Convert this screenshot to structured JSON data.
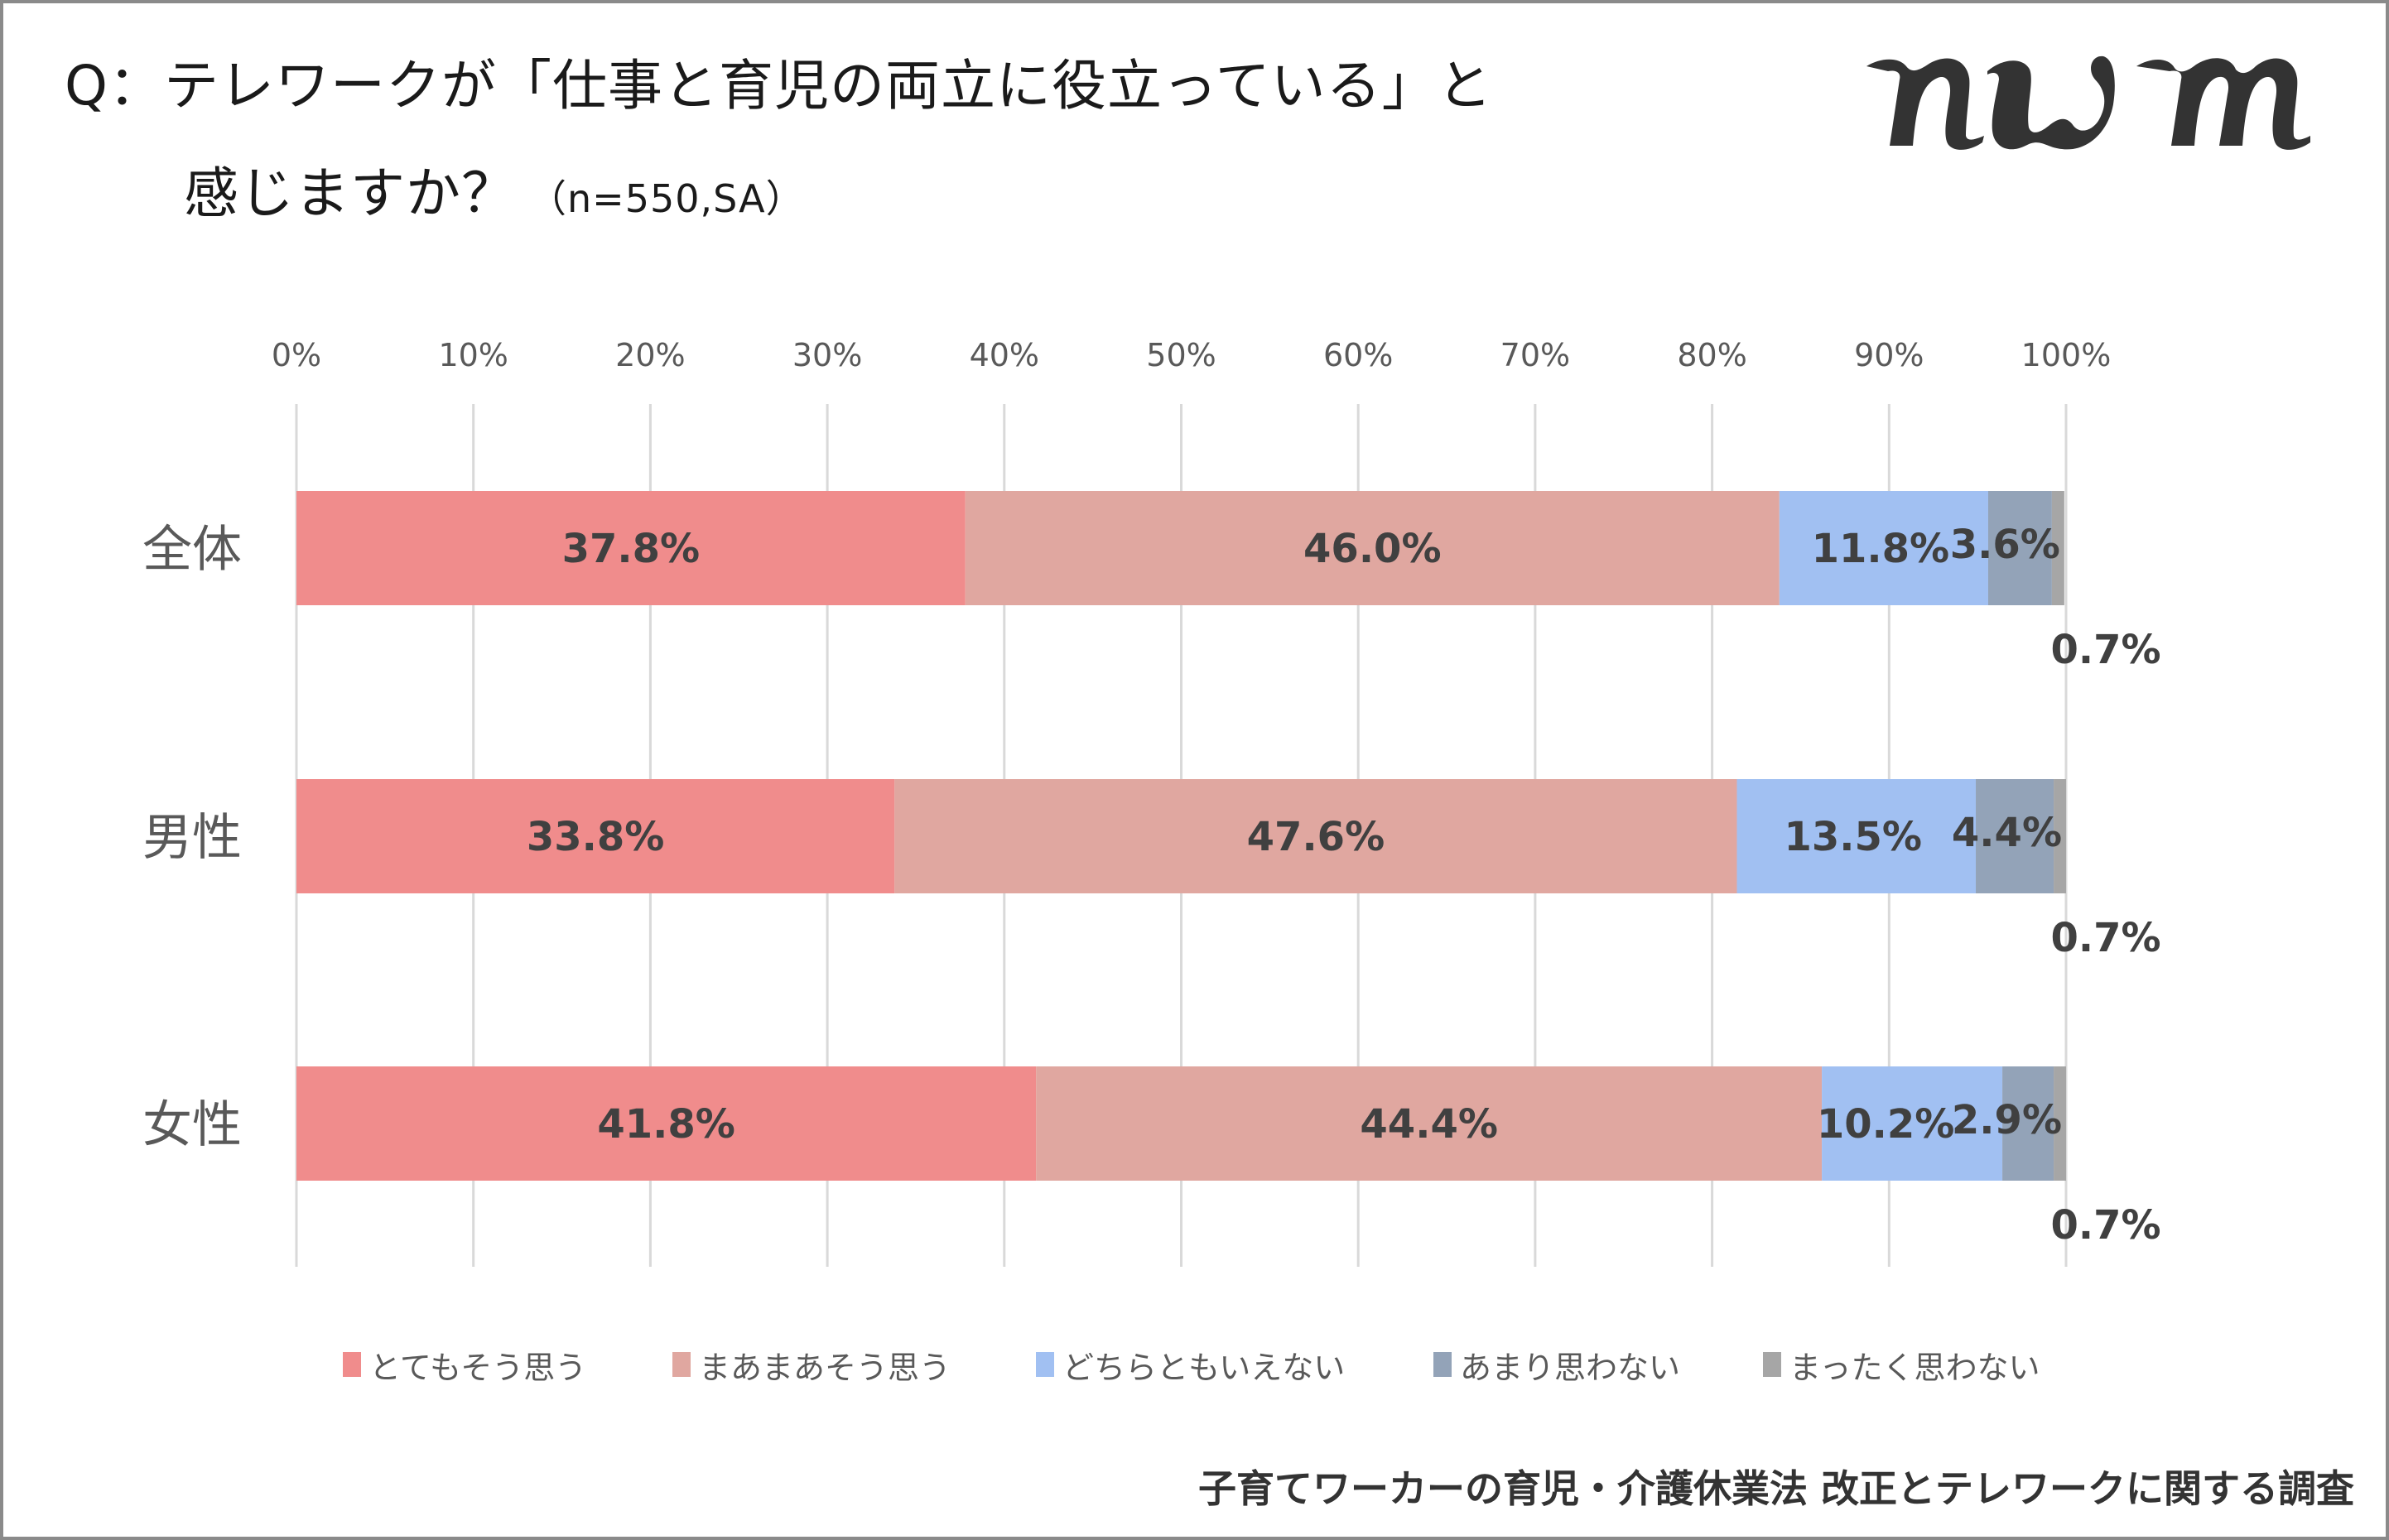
{
  "header": {
    "title_line1": "Q：テレワークが「仕事と育児の両立に役立っている」と",
    "title_line2": "感じますか？",
    "title_note": "（n=550,SA）"
  },
  "logo": {
    "text": "nwm",
    "color": "#333333"
  },
  "footer": {
    "source": "子育てワーカーの育児・介護休業法 改正とテレワークに関する調査"
  },
  "chart_data": {
    "type": "bar",
    "orientation": "horizontal",
    "stacked": true,
    "percent_stacked": true,
    "title": "Q：テレワークが「仕事と育児の両立に役立っている」と感じますか？（n=550,SA）",
    "xlabel": "",
    "ylabel": "",
    "xlim": [
      0,
      100
    ],
    "x_ticks": [
      "0%",
      "10%",
      "20%",
      "30%",
      "40%",
      "50%",
      "60%",
      "70%",
      "80%",
      "90%",
      "100%"
    ],
    "grid": true,
    "legend_position": "bottom",
    "categories": [
      "全体",
      "男性",
      "女性"
    ],
    "series": [
      {
        "name": "とてもそう思う",
        "color": "#F08C8C",
        "values": [
          37.8,
          33.8,
          41.8
        ],
        "labels": [
          "37.8%",
          "33.8%",
          "41.8%"
        ]
      },
      {
        "name": "まあまあそう思う",
        "color": "#E0A7A0",
        "values": [
          46.0,
          47.6,
          44.4
        ],
        "labels": [
          "46.0%",
          "47.6%",
          "44.4%"
        ]
      },
      {
        "name": "どちらともいえない",
        "color": "#A1C0F2",
        "values": [
          11.8,
          13.5,
          10.2
        ],
        "labels": [
          "11.8%",
          "13.5%",
          "10.2%"
        ]
      },
      {
        "name": "あまり思わない",
        "color": "#93A3B8",
        "values": [
          3.6,
          4.4,
          2.9
        ],
        "labels": [
          "3.6%",
          "4.4%",
          "2.9%"
        ]
      },
      {
        "name": "まったく思わない",
        "color": "#A6A6A6",
        "values": [
          0.7,
          0.7,
          0.7
        ],
        "labels": [
          "0.7%",
          "0.7%",
          "0.7%"
        ]
      }
    ]
  }
}
